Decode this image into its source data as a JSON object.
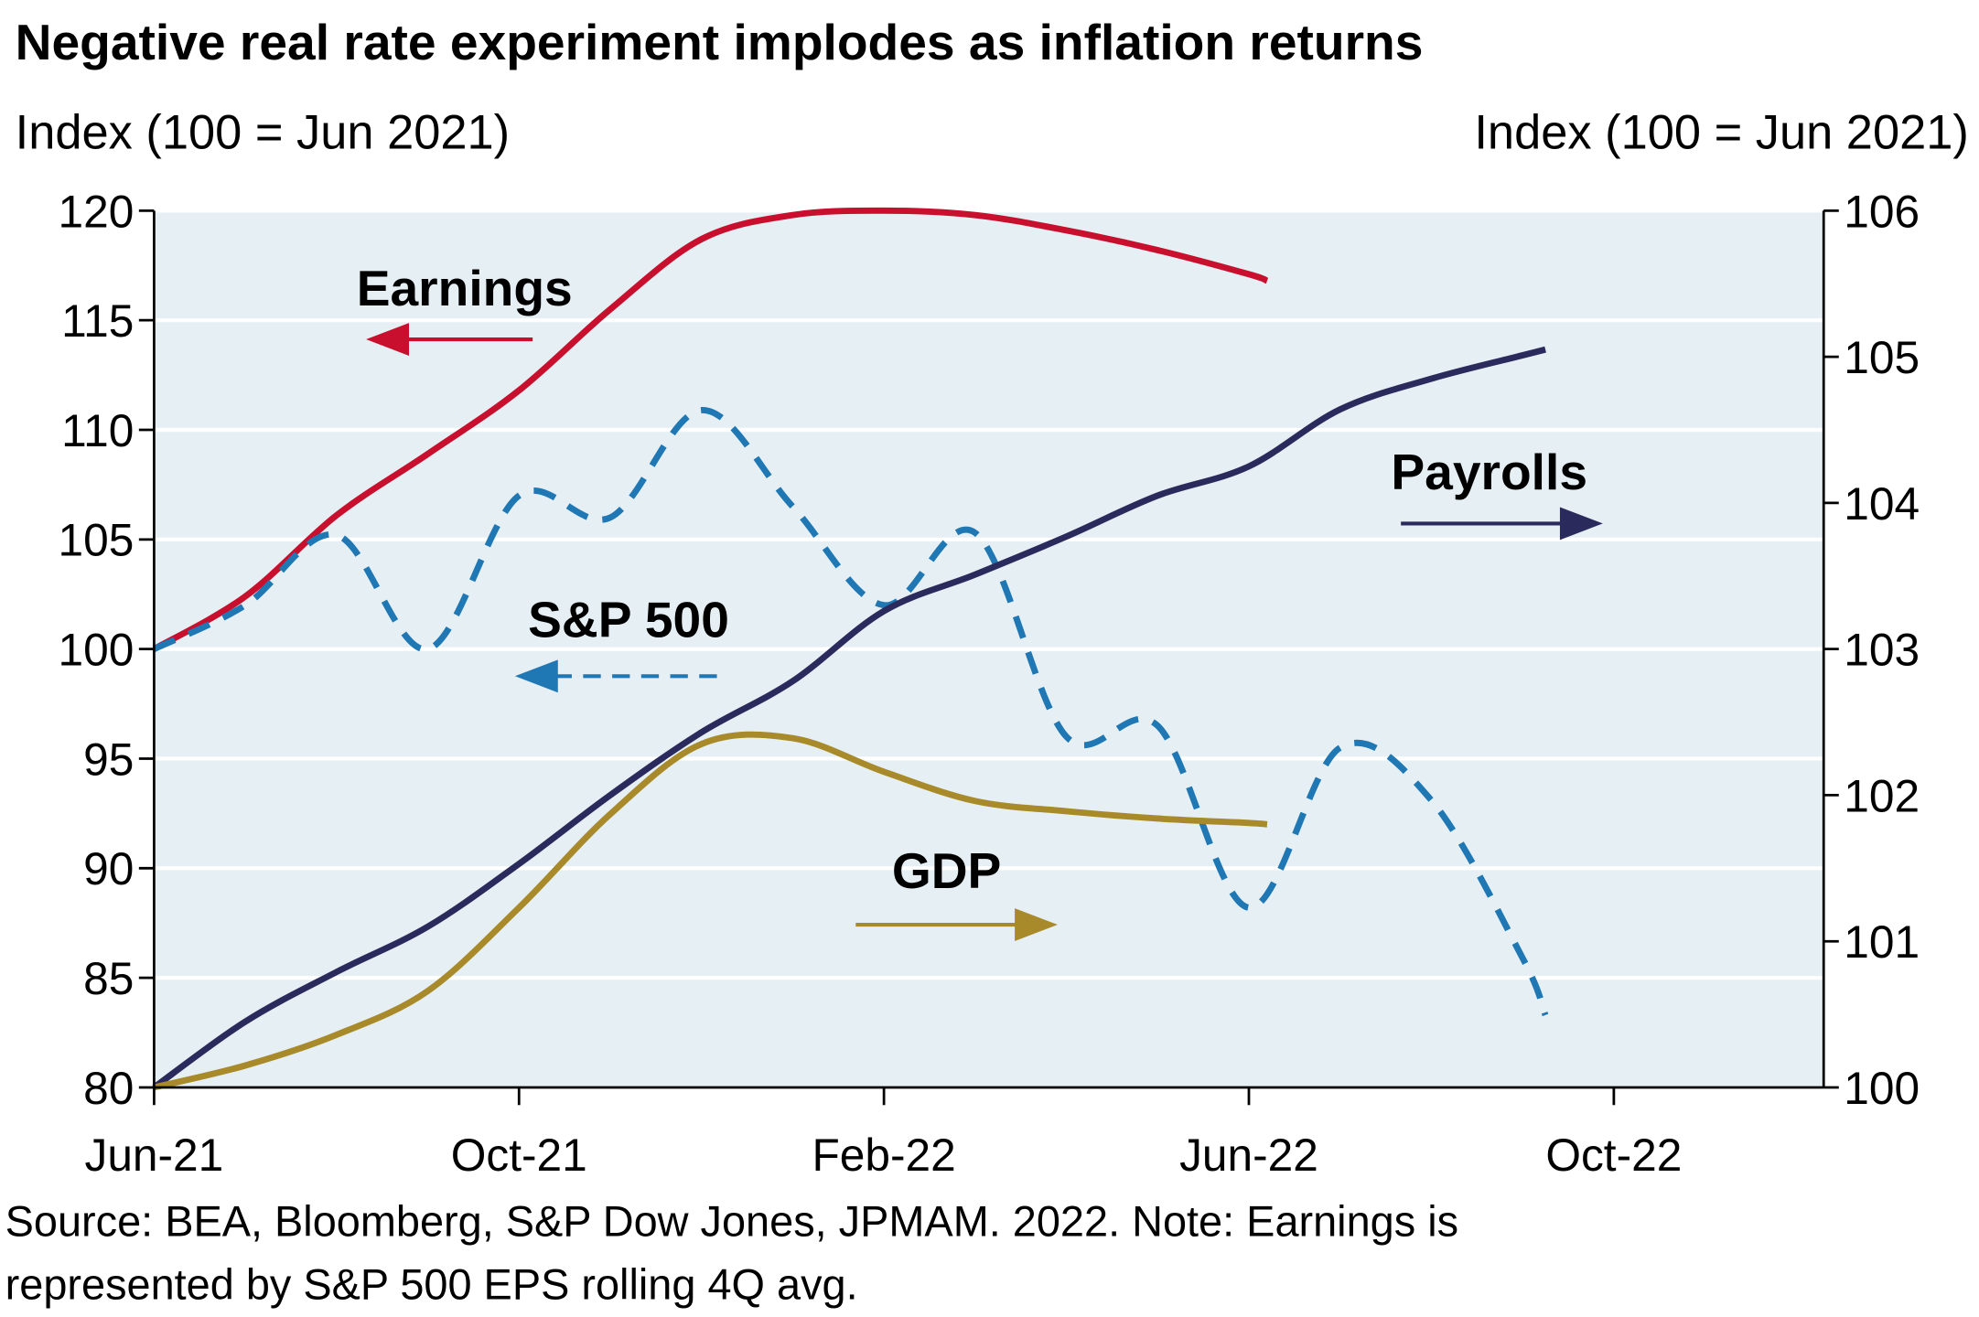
{
  "chart_data": {
    "type": "line",
    "title": "Negative real rate experiment implodes as inflation returns",
    "y_label": "Index (100 = Jun 2021)",
    "y2_label": "Index (100 = Jun 2021)",
    "source": "Source: BEA, Bloomberg, S&P Dow Jones, JPMAM. 2022. Note: Earnings is",
    "source_line2": "represented by S&P 500 EPS rolling 4Q avg.",
    "xlim": [
      0,
      18.3
    ],
    "xticks": [
      {
        "value": 0,
        "label": "Jun-21"
      },
      {
        "value": 4,
        "label": "Oct-21"
      },
      {
        "value": 8,
        "label": "Feb-22"
      },
      {
        "value": 12,
        "label": "Jun-22"
      },
      {
        "value": 16,
        "label": "Oct-22"
      }
    ],
    "ylim": [
      80,
      120
    ],
    "yticks": [
      80,
      85,
      90,
      95,
      100,
      105,
      110,
      115,
      120
    ],
    "y2lim": [
      100,
      106
    ],
    "y2ticks": [
      100,
      101,
      102,
      103,
      104,
      105,
      106
    ],
    "grid": true,
    "background": "#e6f0f4",
    "series": [
      {
        "name": "Earnings",
        "color": "#c8102e",
        "dash": false,
        "axis": "y",
        "x": [
          0,
          1,
          2,
          3,
          4,
          5,
          6,
          7,
          8,
          9,
          10,
          11,
          12,
          12.2
        ],
        "values": [
          100,
          102.4,
          106.1,
          108.9,
          111.8,
          115.5,
          118.7,
          119.8,
          120,
          119.8,
          119.1,
          118.2,
          117.1,
          116.8
        ]
      },
      {
        "name": "S&P 500",
        "color": "#1f77b4",
        "dash": true,
        "axis": "y",
        "x": [
          0,
          1,
          2,
          3,
          4,
          5,
          6,
          7,
          8,
          9,
          10,
          11,
          12,
          13,
          14,
          15,
          15.25
        ],
        "values": [
          100,
          102,
          105.2,
          100,
          107,
          106,
          110.9,
          106.5,
          102,
          105.3,
          96,
          96.5,
          88.2,
          95.5,
          93.1,
          85.9,
          83.3
        ]
      },
      {
        "name": "Payrolls",
        "color": "#2b2a5c",
        "dash": false,
        "axis": "y2",
        "x": [
          0,
          1,
          2,
          3,
          4,
          5,
          6,
          7,
          8,
          9,
          10,
          11,
          12,
          13,
          14,
          15,
          15.25
        ],
        "values": [
          100,
          100.45,
          100.79,
          101.1,
          101.53,
          102,
          102.43,
          102.78,
          103.26,
          103.51,
          103.77,
          104.05,
          104.25,
          104.64,
          104.85,
          105.01,
          105.05
        ]
      },
      {
        "name": "GDP",
        "color": "#a88a2a",
        "dash": false,
        "axis": "y2",
        "x": [
          0,
          1,
          2,
          3,
          4,
          5,
          6,
          7,
          8,
          9,
          10,
          11,
          12,
          12.2
        ],
        "values": [
          100,
          100.15,
          100.36,
          100.66,
          101.23,
          101.87,
          102.35,
          102.39,
          102.16,
          101.96,
          101.89,
          101.84,
          101.81,
          101.8
        ]
      }
    ]
  }
}
